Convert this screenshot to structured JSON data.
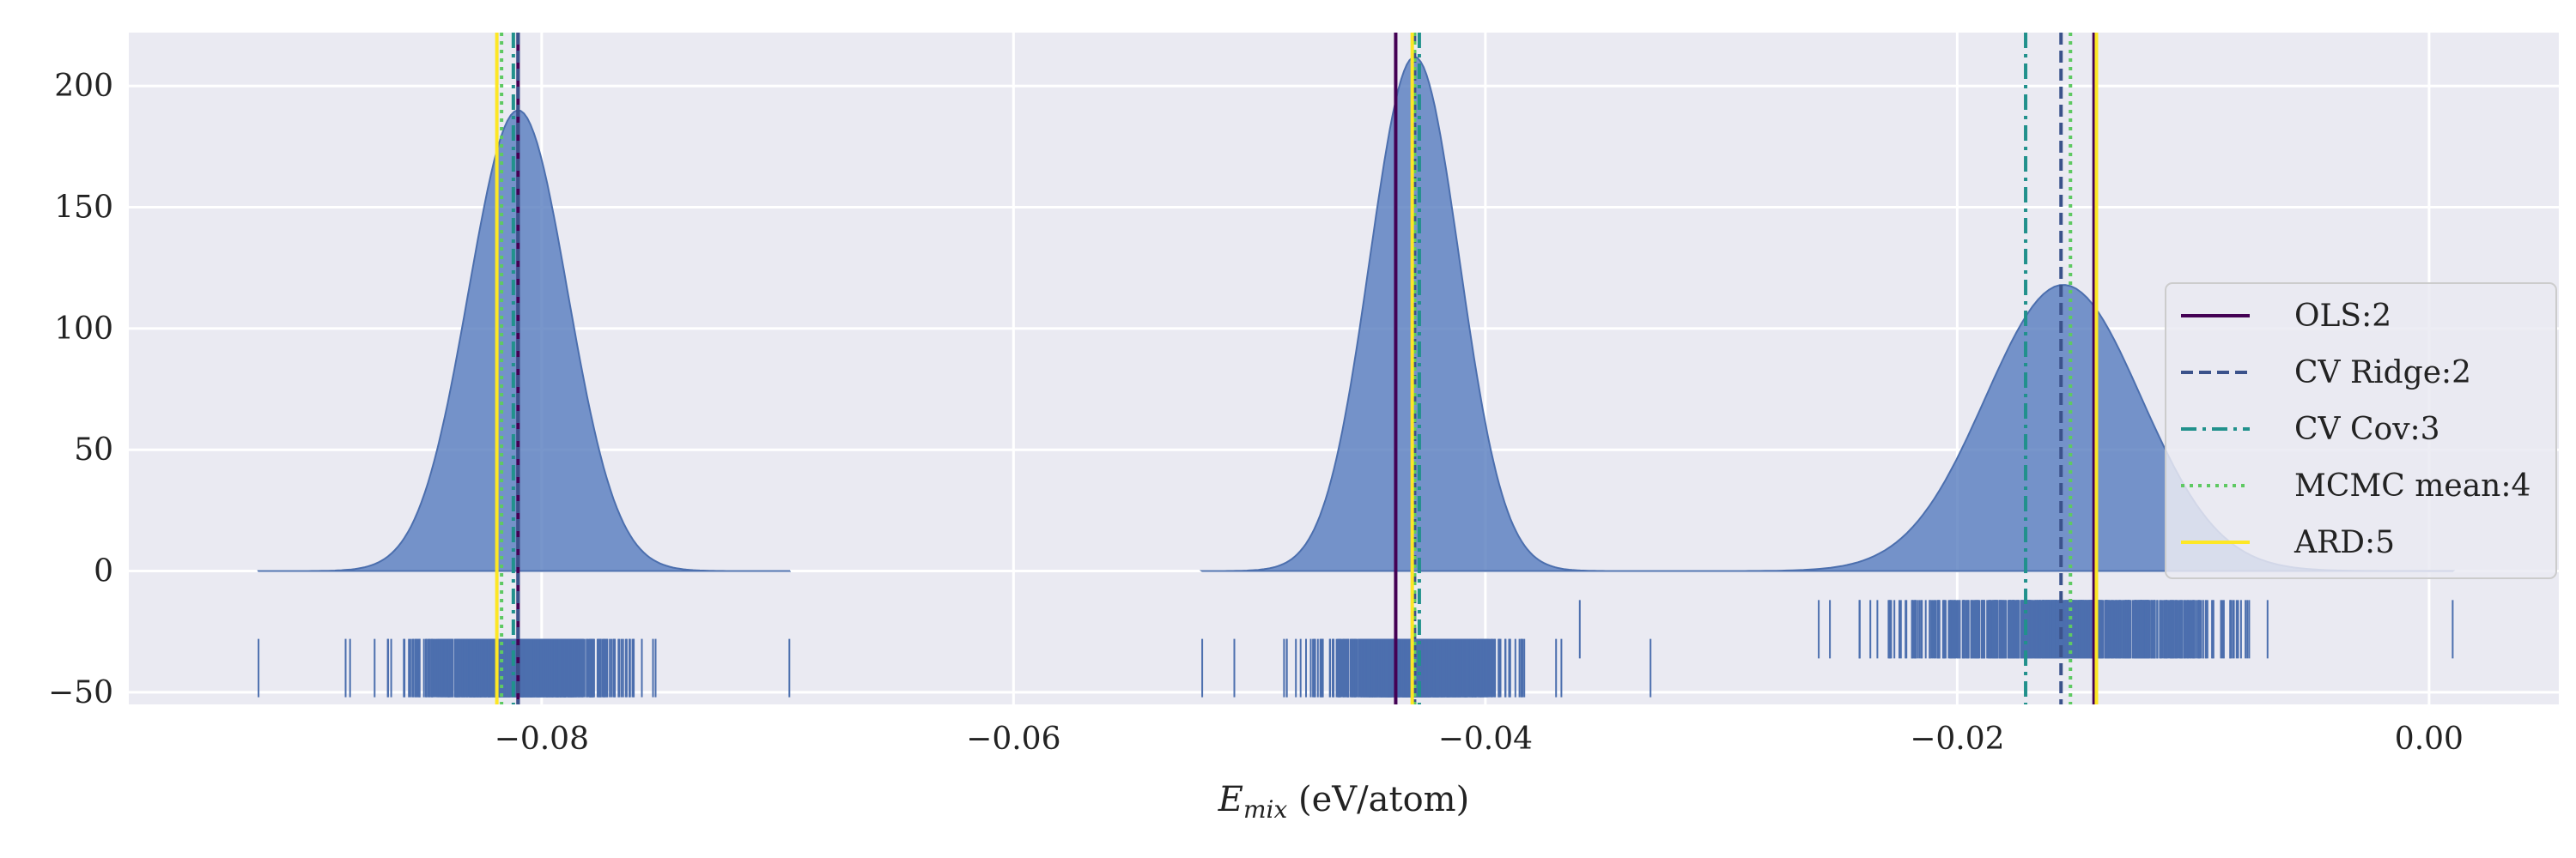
{
  "chart_data": {
    "type": "area",
    "xlim": [
      -0.0975,
      0.0055
    ],
    "ylim": [
      -55,
      222
    ],
    "x_ticks": [
      -0.08,
      -0.06,
      -0.04,
      -0.02,
      0.0
    ],
    "x_tick_labels": [
      "−0.08",
      "−0.06",
      "−0.04",
      "−0.02",
      "0.00"
    ],
    "y_ticks": [
      -50,
      0,
      50,
      100,
      150,
      200
    ],
    "y_tick_labels": [
      "−50",
      "0",
      "50",
      "100",
      "150",
      "200"
    ],
    "xlabel_var": "E",
    "xlabel_sub": "mix",
    "xlabel_unit": " (eV/atom)",
    "grid": true,
    "legend_position": "right",
    "colors": {
      "fill": "#5a7fbf",
      "fill_edge": "#4c6fae",
      "background": "#eaeaf2",
      "grid": "#ffffff"
    },
    "series": [
      {
        "mean": -0.081,
        "sd": 0.0021,
        "peak": 190,
        "min": -0.092,
        "max": -0.0695,
        "rug_y": -40
      },
      {
        "mean": -0.043,
        "sd": 0.0019,
        "peak": 212,
        "min": -0.052,
        "max": -0.033,
        "rug_y": -40
      },
      {
        "mean": -0.0155,
        "sd": 0.0033,
        "peak": 118,
        "min": -0.036,
        "max": 0.001,
        "rug_y": -24
      }
    ],
    "reference_lines": [
      {
        "name": "OLS:2",
        "color": "#440154",
        "dash": "solid",
        "values": [
          -0.081,
          -0.0438,
          -0.0142
        ]
      },
      {
        "name": "CV Ridge:2",
        "color": "#3b528b",
        "dash": "dashed",
        "values": [
          -0.081,
          -0.043,
          -0.0156
        ]
      },
      {
        "name": "CV Cov:3",
        "color": "#21918c",
        "dash": "dashdot",
        "values": [
          -0.0812,
          -0.0428,
          -0.0171
        ]
      },
      {
        "name": "MCMC mean:4",
        "color": "#5ec962",
        "dash": "dotted",
        "values": [
          -0.0817,
          -0.043,
          -0.0152
        ]
      },
      {
        "name": "ARD:5",
        "color": "#fde725",
        "dash": "solid",
        "values": [
          -0.0819,
          -0.0431,
          -0.0141
        ]
      }
    ]
  }
}
